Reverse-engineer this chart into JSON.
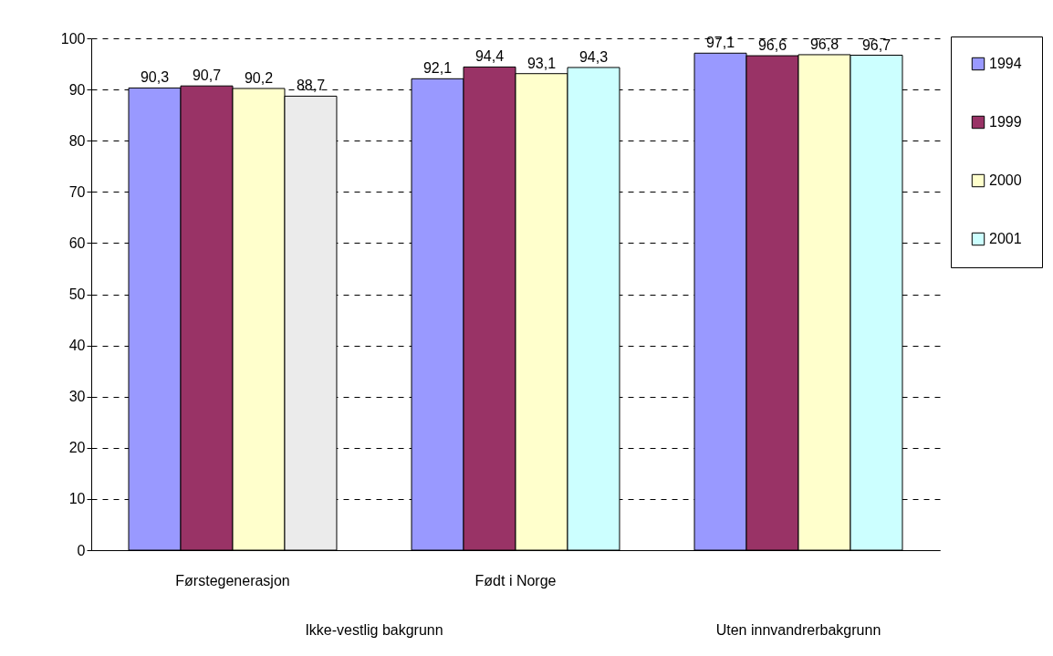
{
  "chart_data": {
    "type": "bar",
    "categories": [
      "Førstegenerasjon",
      "Født i Norge",
      null
    ],
    "series": [
      {
        "name": "1994",
        "color": "#9999ff",
        "values": [
          90.3,
          92.1,
          97.1
        ],
        "value_labels": [
          "90,3",
          "92,1",
          "97,1"
        ]
      },
      {
        "name": "1999",
        "color": "#993366",
        "values": [
          90.7,
          94.4,
          96.6
        ],
        "value_labels": [
          "90,7",
          "94,4",
          "96,6"
        ]
      },
      {
        "name": "2000",
        "color": "#ffffcc",
        "values": [
          90.2,
          93.1,
          96.8
        ],
        "value_labels": [
          "90,2",
          "93,1",
          "96,8"
        ]
      },
      {
        "name": "2001",
        "color": "#ccffff",
        "colors": [
          "#ebebeb",
          "#ccffff",
          "#ccffff"
        ],
        "values": [
          88.7,
          94.3,
          96.7
        ],
        "value_labels": [
          "88,7",
          "94,3",
          "96,7"
        ]
      }
    ],
    "annotations": [
      "Ikke-vestlig bakgrunn",
      "Uten innvandrerbakgrunn"
    ],
    "ylim": [
      0,
      100
    ],
    "yticks": [
      0,
      10,
      20,
      30,
      40,
      50,
      60,
      70,
      80,
      90,
      100
    ],
    "grid": "y",
    "legend": "right"
  }
}
